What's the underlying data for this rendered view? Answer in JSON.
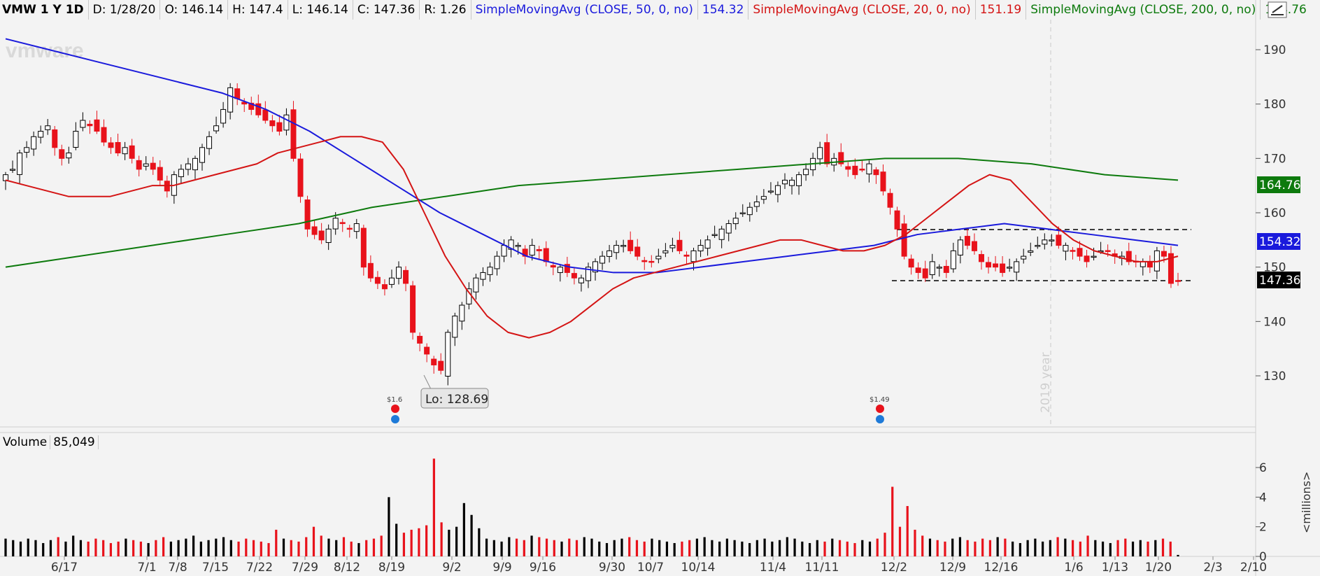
{
  "header": {
    "ticker": "VMW 1 Y 1D",
    "date": "D: 1/28/20",
    "open": "O: 146.14",
    "high": "H: 147.4",
    "low": "L: 146.14",
    "close": "C: 147.36",
    "range": "R: 1.26",
    "sma50_label": "SimpleMovingAvg (CLOSE, 50, 0, no)",
    "sma50_value": "154.32",
    "sma20_label": "SimpleMovingAvg (CLOSE, 20, 0, no)",
    "sma20_value": "151.19",
    "sma200_label": "SimpleMovingAvg (CLOSE, 200, 0, no)",
    "sma200_value": "164.76"
  },
  "colors": {
    "up": "#000000",
    "down": "#e8121b",
    "sma50": "#1a1adc",
    "sma20": "#d41414",
    "sma200": "#0d7a0d",
    "background": "#f3f3f3"
  },
  "watermark": "vmware",
  "low_callout": "Lo: 128.69",
  "dividends": [
    {
      "label": "$1.6",
      "x_date": "8/19"
    },
    {
      "label": "$1.49",
      "x_date": "11/25"
    }
  ],
  "year_marker": "2019 year",
  "volume_panel": {
    "label": "Volume",
    "value": "85,049",
    "unit": "<millions>"
  },
  "price_badges": {
    "sma200": "164.76",
    "sma50": "154.32",
    "last": "147.36"
  },
  "chart_data": {
    "type": "candlestick",
    "y_ticks": [
      130,
      140,
      150,
      160,
      170,
      180,
      190
    ],
    "y_range": [
      122,
      199
    ],
    "x_ticks": [
      "6/17",
      "7/1",
      "7/8",
      "7/15",
      "7/22",
      "7/29",
      "8/12",
      "8/19",
      "9/2",
      "9/9",
      "9/16",
      "9/30",
      "10/7",
      "10/14",
      "11/4",
      "11/11",
      "12/2",
      "12/9",
      "12/16",
      "1/6",
      "1/13",
      "1/20",
      "2/3",
      "2/10"
    ],
    "volume_ticks": [
      0,
      2,
      4,
      6
    ],
    "support_level": 147.5,
    "resistance_level": 156.8,
    "last_close": 147.36,
    "closes": [
      167,
      168,
      171,
      172,
      174,
      175,
      176,
      172,
      170,
      171,
      175,
      177,
      176,
      175,
      173,
      172,
      171,
      172,
      170,
      168,
      169,
      168,
      166,
      164,
      167,
      168,
      169,
      170,
      172,
      174,
      176,
      179,
      183,
      181,
      180,
      179,
      178,
      177,
      176,
      175,
      178,
      170,
      163,
      157,
      156,
      155,
      157,
      159,
      158,
      157,
      158,
      150,
      148,
      147,
      146,
      148,
      150,
      147,
      138,
      136,
      134,
      132,
      131,
      138,
      141,
      143,
      146,
      148,
      149,
      150,
      152,
      154,
      155,
      154,
      152,
      154,
      153,
      151,
      150,
      150,
      149,
      148,
      148,
      150,
      151,
      152,
      153,
      154,
      154,
      153,
      152,
      151,
      151,
      152,
      153,
      154,
      153,
      152,
      153,
      154,
      155,
      156,
      157,
      158,
      159,
      160,
      161,
      162,
      163,
      164,
      165,
      166,
      166,
      167,
      168,
      170,
      172,
      169,
      170,
      169,
      168,
      167,
      168,
      169,
      167,
      164,
      161,
      157,
      152,
      150,
      149,
      148,
      151,
      150,
      149,
      153,
      155,
      154,
      153,
      151,
      150,
      150,
      149,
      150,
      151,
      152,
      153,
      154,
      155,
      155,
      154,
      154,
      153,
      152,
      151,
      152,
      153,
      153,
      152,
      152,
      151,
      151,
      151,
      150,
      153,
      152,
      147,
      147.36
    ],
    "sma20": [
      166,
      165,
      164,
      163,
      163,
      163,
      164,
      165,
      165,
      166,
      167,
      168,
      169,
      171,
      172,
      173,
      174,
      174,
      173,
      168,
      160,
      152,
      146,
      141,
      138,
      137,
      138,
      140,
      143,
      146,
      148,
      149,
      150,
      151,
      152,
      153,
      154,
      155,
      155,
      154,
      153,
      153,
      154,
      156,
      159,
      162,
      165,
      167,
      166,
      162,
      158,
      155,
      153,
      152,
      151,
      151,
      152
    ],
    "sma50": [
      192,
      190,
      188,
      186,
      184,
      182,
      179,
      175,
      170,
      165,
      160,
      156,
      152,
      150,
      149,
      149,
      150,
      151,
      152,
      153,
      154,
      156,
      157,
      158,
      157,
      156,
      155,
      154
    ],
    "sma200": [
      150,
      152,
      154,
      156,
      158,
      161,
      163,
      165,
      166,
      167,
      168,
      169,
      170,
      170,
      169,
      167,
      166
    ],
    "volume_millions": [
      1.2,
      1.1,
      1.0,
      1.2,
      1.1,
      0.9,
      1.1,
      1.3,
      1.0,
      1.4,
      1.1,
      1.0,
      1.2,
      1.1,
      0.9,
      1.0,
      1.2,
      1.1,
      1.0,
      0.9,
      1.1,
      1.3,
      1.0,
      1.1,
      1.2,
      1.4,
      1.0,
      1.1,
      1.2,
      1.3,
      1.1,
      1.0,
      1.2,
      1.1,
      1.0,
      0.9,
      1.8,
      1.2,
      1.1,
      1.0,
      1.3,
      2.0,
      1.4,
      1.2,
      1.1,
      1.3,
      1.0,
      0.9,
      1.1,
      1.2,
      1.4,
      4.0,
      2.2,
      1.6,
      1.8,
      1.9,
      2.1,
      6.6,
      2.3,
      1.8,
      2.0,
      3.6,
      2.8,
      1.9,
      1.2,
      1.1,
      1.0,
      1.3,
      1.2,
      1.1,
      1.4,
      1.3,
      1.2,
      1.1,
      1.0,
      1.2,
      1.1,
      1.3,
      1.2,
      1.0,
      0.9,
      1.1,
      1.2,
      1.3,
      1.1,
      1.0,
      1.2,
      1.1,
      1.0,
      0.9,
      1.0,
      1.1,
      1.2,
      1.3,
      1.1,
      1.0,
      1.2,
      1.1,
      1.0,
      0.9,
      1.1,
      1.2,
      1.0,
      1.1,
      1.3,
      1.2,
      1.0,
      0.9,
      1.1,
      1.0,
      1.2,
      1.1,
      1.0,
      0.9,
      1.1,
      1.0,
      1.2,
      1.6,
      4.7,
      2.0,
      3.4,
      1.8,
      1.4,
      1.2,
      1.1,
      1.0,
      1.2,
      1.3,
      1.1,
      1.0,
      1.2,
      1.1,
      1.3,
      1.2,
      1.0,
      0.9,
      1.1,
      1.2,
      1.0,
      1.1,
      1.3,
      1.2,
      1.1,
      1.0,
      1.4,
      1.1,
      1.0,
      0.9,
      1.1,
      1.2,
      1.0,
      1.1,
      1.0,
      1.1,
      1.2,
      1.0,
      0.1
    ]
  }
}
